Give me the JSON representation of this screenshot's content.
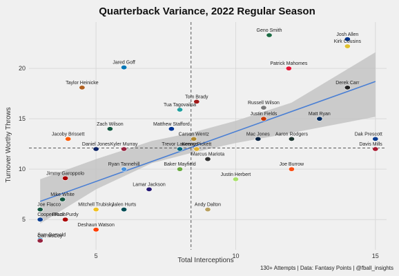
{
  "chart_data": {
    "type": "scatter",
    "title": "Quarterback Variance, 2022 Regular Season",
    "xlabel": "Total Interceptions",
    "ylabel": "Turnover Worthy Throws",
    "caption": "130+ Attempts | Data: Fantasy Points | @fball_insights",
    "xlim": [
      2.6,
      15.4
    ],
    "ylim": [
      2.0,
      24.6
    ],
    "xticks": [
      5,
      10,
      15
    ],
    "yticks": [
      5,
      10,
      15,
      20
    ],
    "grid": true,
    "mean_x": 8.4,
    "mean_y": 12.1,
    "trend": {
      "x": [
        3,
        15
      ],
      "y": [
        6.8,
        18.7
      ]
    },
    "confidence_band": {
      "x": [
        3,
        5,
        7,
        8.4,
        10,
        12,
        15
      ],
      "lower": [
        4.6,
        8.0,
        10.6,
        11.6,
        12.6,
        13.6,
        15.2
      ],
      "upper": [
        9.0,
        11.0,
        12.8,
        13.6,
        14.8,
        16.6,
        21.6
      ]
    },
    "colors": {
      "trend": "#4a7fd4",
      "band": "#bfbfbf",
      "background": "#f0f0f0",
      "grid": "#d9d9d9",
      "mean_line": "#555555"
    },
    "points": [
      {
        "name": "Geno Smith",
        "x": 11.2,
        "y": 23.3,
        "color": "#1c6b44"
      },
      {
        "name": "Josh Allen",
        "x": 14.0,
        "y": 22.9,
        "color": "#00338d"
      },
      {
        "name": "Kirk Cousins",
        "x": 14.0,
        "y": 22.2,
        "color": "#e0c030"
      },
      {
        "name": "Jared Goff",
        "x": 6.0,
        "y": 20.1,
        "color": "#0076b6"
      },
      {
        "name": "Patrick Mahomes",
        "x": 11.9,
        "y": 20.0,
        "color": "#e31837"
      },
      {
        "name": "Taylor Heinicke",
        "x": 4.5,
        "y": 18.1,
        "color": "#b06020"
      },
      {
        "name": "Derek Carr",
        "x": 14.0,
        "y": 18.1,
        "color": "#222222"
      },
      {
        "name": "Tom Brady",
        "x": 8.6,
        "y": 16.7,
        "color": "#a01818"
      },
      {
        "name": "Russell Wilson",
        "x": 11.0,
        "y": 16.1,
        "color": "#7a7a7a"
      },
      {
        "name": "Tua Tagovailoa",
        "x": 8.0,
        "y": 15.9,
        "color": "#20a0a0"
      },
      {
        "name": "Justin Fields",
        "x": 11.0,
        "y": 15.0,
        "color": "#c83803"
      },
      {
        "name": "Matt Ryan",
        "x": 13.0,
        "y": 15.0,
        "color": "#002c5f"
      },
      {
        "name": "Zach Wilson",
        "x": 5.5,
        "y": 14.0,
        "color": "#125740"
      },
      {
        "name": "Matthew Stafford",
        "x": 7.7,
        "y": 14.0,
        "color": "#003594"
      },
      {
        "name": "Jacoby Brissett",
        "x": 4.0,
        "y": 13.0,
        "color": "#ff5a00"
      },
      {
        "name": "Carson Wentz",
        "x": 8.5,
        "y": 13.0,
        "color": "#b08a30"
      },
      {
        "name": "Mac Jones",
        "x": 10.8,
        "y": 13.0,
        "color": "#0a2342"
      },
      {
        "name": "Aaron Rodgers",
        "x": 12.0,
        "y": 13.0,
        "color": "#203731"
      },
      {
        "name": "Dak Prescott",
        "x": 15.0,
        "y": 13.0,
        "color": "#0a3d91"
      },
      {
        "name": "Kenny Pickett",
        "x": 8.6,
        "y": 12.0,
        "color": "#e0b030"
      },
      {
        "name": "Kyler Murray",
        "x": 6.0,
        "y": 12.0,
        "color": "#97233f"
      },
      {
        "name": "Trevor Lawrence",
        "x": 8.0,
        "y": 12.0,
        "color": "#006778"
      },
      {
        "name": "Daniel Jones",
        "x": 5.0,
        "y": 12.0,
        "color": "#0b2265"
      },
      {
        "name": "Davis Mills",
        "x": 15.0,
        "y": 12.0,
        "color": "#a71930"
      },
      {
        "name": "Marcus Mariota",
        "x": 9.0,
        "y": 11.0,
        "color": "#333333"
      },
      {
        "name": "Joe Burrow",
        "x": 12.0,
        "y": 10.0,
        "color": "#fb4f14"
      },
      {
        "name": "Ryan Tannehill",
        "x": 6.0,
        "y": 10.0,
        "color": "#4b92db"
      },
      {
        "name": "Baker Mayfield",
        "x": 8.0,
        "y": 10.0,
        "color": "#6aaa40"
      },
      {
        "name": "Jimmy Garoppolo",
        "x": 3.9,
        "y": 9.1,
        "color": "#aa0000"
      },
      {
        "name": "Justin Herbert",
        "x": 10.0,
        "y": 9.0,
        "color": "#a8e06a"
      },
      {
        "name": "Lamar Jackson",
        "x": 6.9,
        "y": 8.0,
        "color": "#241773"
      },
      {
        "name": "Mike White",
        "x": 3.8,
        "y": 7.0,
        "color": "#125740"
      },
      {
        "name": "Jalen Hurts",
        "x": 6.0,
        "y": 6.0,
        "color": "#004c54"
      },
      {
        "name": "Andy Dalton",
        "x": 9.0,
        "y": 6.0,
        "color": "#b8a060"
      },
      {
        "name": "Joe Flacco",
        "x": 3.0,
        "y": 6.0,
        "color": "#125740"
      },
      {
        "name": "Mitchell Trubisky",
        "x": 5.0,
        "y": 6.0,
        "color": "#f0c020"
      },
      {
        "name": "Brock Purdy",
        "x": 3.9,
        "y": 5.0,
        "color": "#aa0000"
      },
      {
        "name": "Cooper Rush",
        "x": 3.0,
        "y": 5.0,
        "color": "#0a3d91"
      },
      {
        "name": "Deshaun Watson",
        "x": 5.0,
        "y": 4.0,
        "color": "#ff3c00"
      },
      {
        "name": "Sam Darnold",
        "x": 3.0,
        "y": 3.0,
        "color": "#0085ca"
      },
      {
        "name": "Colt McCoy",
        "x": 3.0,
        "y": 2.9,
        "color": "#97233f"
      }
    ]
  }
}
